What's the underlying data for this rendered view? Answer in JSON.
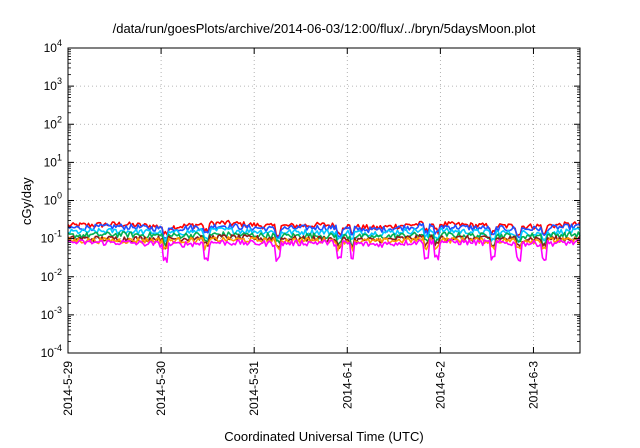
{
  "chart_data": {
    "type": "line",
    "title": "/data/run/goesPlots/archive/2014-06-03/12:00/flux/../bryn/5daysMoon.plot",
    "xlabel": "Coordinated Universal Time (UTC)",
    "ylabel": "cGy/day",
    "yscale": "log",
    "ylim": [
      0.0001,
      10000
    ],
    "y_tick_exponents": [
      -4,
      -3,
      -2,
      -1,
      0,
      1,
      2,
      3,
      4
    ],
    "xlim": [
      "2014-05-29 00:00",
      "2014-06-03 12:00"
    ],
    "x_ticks": [
      "2014-5-29",
      "2014-5-30",
      "2014-5-31",
      "2014-6-1",
      "2014-6-2",
      "2014-6-3"
    ],
    "grid": true,
    "legend": "none",
    "series": [
      {
        "color": "#ff0000",
        "base": 0.22,
        "values": [
          0.22,
          0.24,
          0.2,
          0.26,
          0.21,
          0.23,
          0.19,
          0.25,
          0.22,
          0.21,
          0.24
        ]
      },
      {
        "color": "#1e50ff",
        "base": 0.19,
        "values": [
          0.19,
          0.21,
          0.18,
          0.22,
          0.18,
          0.2,
          0.17,
          0.22,
          0.19,
          0.18,
          0.21
        ]
      },
      {
        "color": "#00c8ff",
        "base": 0.15,
        "values": [
          0.15,
          0.16,
          0.14,
          0.17,
          0.15,
          0.15,
          0.14,
          0.17,
          0.15,
          0.14,
          0.16
        ]
      },
      {
        "color": "#00b050",
        "base": 0.12,
        "values": [
          0.12,
          0.13,
          0.12,
          0.13,
          0.12,
          0.12,
          0.11,
          0.13,
          0.12,
          0.12,
          0.13
        ]
      },
      {
        "color": "#8b1a1a",
        "base": 0.1,
        "values": [
          0.1,
          0.1,
          0.1,
          0.11,
          0.1,
          0.1,
          0.09,
          0.11,
          0.1,
          0.1,
          0.1
        ]
      },
      {
        "color": "#ff9900",
        "base": 0.09,
        "values": [
          0.09,
          0.09,
          0.09,
          0.095,
          0.09,
          0.09,
          0.085,
          0.095,
          0.09,
          0.09,
          0.09
        ]
      },
      {
        "color": "#ff00ff",
        "base": 0.08,
        "values": [
          0.08,
          0.08,
          0.07,
          0.08,
          0.075,
          0.08,
          0.07,
          0.085,
          0.08,
          0.075,
          0.08
        ]
      }
    ]
  }
}
